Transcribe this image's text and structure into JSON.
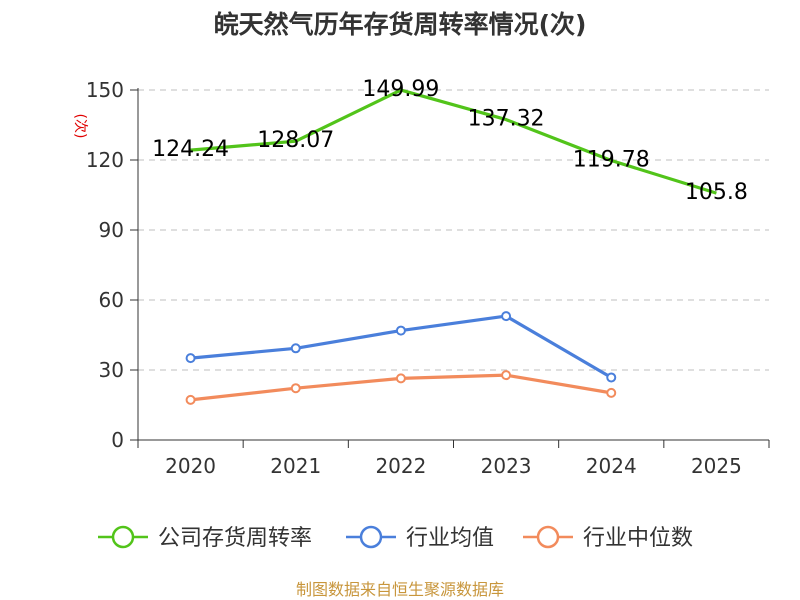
{
  "chart_data": {
    "type": "line",
    "title": "皖天然气历年存货周转率情况(次)",
    "ylabel": "(次)",
    "xlabel": "",
    "categories": [
      "2020",
      "2021",
      "2022",
      "2023",
      "2024",
      "2025"
    ],
    "ylim": [
      0,
      150
    ],
    "yticks": [
      0,
      30,
      60,
      90,
      120,
      150
    ],
    "grid": "horizontal-dashed",
    "legend_position": "bottom",
    "series": [
      {
        "name": "公司存货周转率",
        "color": "#52c41a",
        "marker": "none",
        "values": [
          124.24,
          128.07,
          149.99,
          137.32,
          119.78,
          105.8
        ],
        "labels": [
          "124.24",
          "128.07",
          "149.99",
          "137.32",
          "119.78",
          "105.8"
        ]
      },
      {
        "name": "行业均值",
        "color": "#4a7fdb",
        "marker": "circle",
        "values": [
          35.1,
          39.3,
          46.9,
          53.1,
          26.8,
          null
        ]
      },
      {
        "name": "行业中位数",
        "color": "#f28b5c",
        "marker": "circle",
        "values": [
          17.2,
          22.2,
          26.4,
          27.8,
          20.2,
          null
        ]
      }
    ]
  },
  "source": "制图数据来自恒生聚源数据库"
}
